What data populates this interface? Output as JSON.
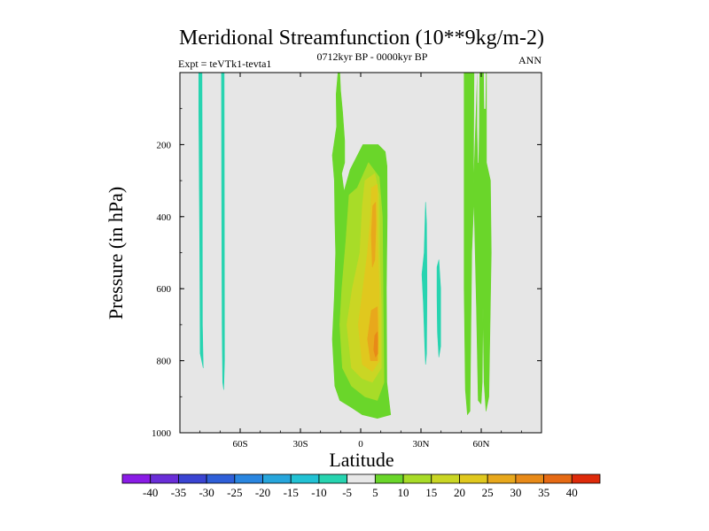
{
  "chart_data": {
    "type": "heatmap",
    "subtype": "filled-contour",
    "title": "Meridional Streamfunction (10**9kg/m-2)",
    "left_subtitle": "Expt = teVTk1-tevta1",
    "center_subtitle": "0712kyr BP - 0000kyr BP",
    "right_subtitle": "ANN",
    "xlabel": "Latitude",
    "ylabel": "Pressure (in hPa)",
    "xlim": [
      -90,
      90
    ],
    "ylim": [
      1000,
      0
    ],
    "x_ticks": [
      {
        "value": -60,
        "label": "60S"
      },
      {
        "value": -30,
        "label": "30S"
      },
      {
        "value": 0,
        "label": "0"
      },
      {
        "value": 30,
        "label": "30N"
      },
      {
        "value": 60,
        "label": "60N"
      }
    ],
    "y_ticks": [
      {
        "value": 200,
        "label": "200"
      },
      {
        "value": 400,
        "label": "400"
      },
      {
        "value": 600,
        "label": "600"
      },
      {
        "value": 800,
        "label": "800"
      },
      {
        "value": 1000,
        "label": "1000"
      }
    ],
    "background_color": "#e6e6e6",
    "colorbar": {
      "levels": [
        -40,
        -35,
        -30,
        -25,
        -20,
        -15,
        -10,
        -5,
        5,
        10,
        15,
        20,
        25,
        30,
        35,
        40
      ],
      "colors": [
        "#8a1ce6",
        "#6a2ed8",
        "#3a44d2",
        "#2f5fd8",
        "#2a86e0",
        "#27a6dc",
        "#22c2d4",
        "#27d4b0",
        "#e8e8e8",
        "#6ad62a",
        "#a8dc28",
        "#cad624",
        "#e0c81e",
        "#e8a81c",
        "#e88a18",
        "#e66a14",
        "#de2a0a"
      ]
    },
    "contour_regions": [
      {
        "name": "band-sh-1",
        "level_min": -10,
        "level_max": -5,
        "color": "#27d4b0",
        "points": [
          [
            -80.6,
            0
          ],
          [
            -79.0,
            0
          ],
          [
            -78.9,
            300
          ],
          [
            -78.8,
            700
          ],
          [
            -78.4,
            820
          ],
          [
            -79.9,
            780
          ],
          [
            -80.1,
            500
          ],
          [
            -80.6,
            100
          ]
        ]
      },
      {
        "name": "band-sh-2",
        "level_min": -10,
        "level_max": -5,
        "color": "#27d4b0",
        "points": [
          [
            -69.3,
            0
          ],
          [
            -68.0,
            0
          ],
          [
            -67.9,
            400
          ],
          [
            -67.8,
            800
          ],
          [
            -68.2,
            880
          ],
          [
            -68.7,
            860
          ],
          [
            -69.0,
            700
          ],
          [
            -69.2,
            300
          ]
        ]
      },
      {
        "name": "eq-cell-outer",
        "level_min": 5,
        "level_max": 10,
        "color": "#6ad62a",
        "points": [
          [
            -11.3,
            0
          ],
          [
            -10.4,
            0
          ],
          [
            -10.0,
            50
          ],
          [
            -9.0,
            110
          ],
          [
            -8.0,
            190
          ],
          [
            -8.0,
            250
          ],
          [
            -9.5,
            280
          ],
          [
            -8.3,
            330
          ],
          [
            -5.3,
            270
          ],
          [
            1.1,
            200
          ],
          [
            8.7,
            200
          ],
          [
            12.2,
            220
          ],
          [
            13.1,
            260
          ],
          [
            13.2,
            400
          ],
          [
            12.8,
            600
          ],
          [
            13.0,
            860
          ],
          [
            14.9,
            950
          ],
          [
            8.3,
            960
          ],
          [
            0.8,
            950
          ],
          [
            -4.6,
            930
          ],
          [
            -10.4,
            910
          ],
          [
            -12.9,
            870
          ],
          [
            -14.1,
            740
          ],
          [
            -13.1,
            620
          ],
          [
            -12.5,
            500
          ],
          [
            -12.9,
            400
          ],
          [
            -13.1,
            300
          ],
          [
            -14.1,
            230
          ],
          [
            -12.0,
            150
          ],
          [
            -12.2,
            60
          ]
        ]
      },
      {
        "name": "eq-cell-10",
        "level_min": 10,
        "level_max": 15,
        "color": "#a8dc28",
        "points": [
          [
            -1.7,
            320
          ],
          [
            3.9,
            250
          ],
          [
            9.2,
            290
          ],
          [
            10.8,
            400
          ],
          [
            11.2,
            650
          ],
          [
            11.6,
            860
          ],
          [
            8.3,
            910
          ],
          [
            2.1,
            900
          ],
          [
            -4.6,
            870
          ],
          [
            -9.1,
            820
          ],
          [
            -10.4,
            700
          ],
          [
            -9.4,
            600
          ],
          [
            -7.4,
            470
          ],
          [
            -5.8,
            340
          ]
        ]
      },
      {
        "name": "eq-cell-15",
        "level_min": 15,
        "level_max": 20,
        "color": "#cad624",
        "points": [
          [
            2.1,
            300
          ],
          [
            7.0,
            280
          ],
          [
            9.2,
            340
          ],
          [
            9.4,
            500
          ],
          [
            10.3,
            650
          ],
          [
            10.3,
            820
          ],
          [
            5.8,
            860
          ],
          [
            0.8,
            850
          ],
          [
            -4.6,
            820
          ],
          [
            -6.9,
            700
          ],
          [
            -4.2,
            600
          ],
          [
            -0.4,
            500
          ],
          [
            0.8,
            370
          ]
        ]
      },
      {
        "name": "eq-cell-20",
        "level_min": 20,
        "level_max": 25,
        "color": "#e0c81e",
        "points": [
          [
            5.3,
            320
          ],
          [
            8.3,
            310
          ],
          [
            8.3,
            450
          ],
          [
            9.2,
            600
          ],
          [
            9.4,
            800
          ],
          [
            5.8,
            830
          ],
          [
            0.8,
            810
          ],
          [
            -1.2,
            700
          ],
          [
            1.1,
            600
          ],
          [
            3.4,
            500
          ],
          [
            4.9,
            400
          ]
        ]
      },
      {
        "name": "eq-cell-25-upper",
        "level_min": 25,
        "level_max": 30,
        "color": "#e8a81c",
        "points": [
          [
            6.0,
            370
          ],
          [
            7.4,
            360
          ],
          [
            7.6,
            420
          ],
          [
            7.0,
            520
          ],
          [
            5.8,
            540
          ],
          [
            5.3,
            450
          ]
        ]
      },
      {
        "name": "eq-cell-25-lower",
        "level_min": 25,
        "level_max": 30,
        "color": "#e8a81c",
        "points": [
          [
            5.3,
            660
          ],
          [
            8.3,
            650
          ],
          [
            8.7,
            740
          ],
          [
            8.3,
            800
          ],
          [
            4.9,
            800
          ],
          [
            3.4,
            740
          ]
        ]
      },
      {
        "name": "eq-cell-30",
        "level_min": 30,
        "level_max": 35,
        "color": "#e88a18",
        "points": [
          [
            7.0,
            730
          ],
          [
            8.3,
            720
          ],
          [
            8.5,
            780
          ],
          [
            7.4,
            790
          ],
          [
            6.5,
            770
          ]
        ]
      },
      {
        "name": "band-nh-1",
        "level_min": -10,
        "level_max": -5,
        "color": "#27d4b0",
        "points": [
          [
            31.6,
            500
          ],
          [
            32.3,
            360
          ],
          [
            32.8,
            420
          ],
          [
            33.0,
            600
          ],
          [
            32.8,
            780
          ],
          [
            32.3,
            810
          ],
          [
            31.9,
            760
          ],
          [
            31.2,
            640
          ],
          [
            30.5,
            560
          ]
        ]
      },
      {
        "name": "band-nh-2",
        "level_min": -10,
        "level_max": -5,
        "color": "#27d4b0",
        "points": [
          [
            38.0,
            540
          ],
          [
            38.9,
            520
          ],
          [
            39.8,
            600
          ],
          [
            39.8,
            760
          ],
          [
            38.9,
            790
          ],
          [
            38.2,
            720
          ],
          [
            38.0,
            620
          ]
        ]
      },
      {
        "name": "band-nh-green",
        "level_min": 5,
        "level_max": 10,
        "color": "#6ad62a",
        "points": [
          [
            51.5,
            0
          ],
          [
            56.4,
            0
          ],
          [
            56.1,
            330
          ],
          [
            58.1,
            0
          ],
          [
            62.6,
            0
          ],
          [
            62.6,
            250
          ],
          [
            64.6,
            300
          ],
          [
            65.0,
            500
          ],
          [
            63.8,
            900
          ],
          [
            62.4,
            940
          ],
          [
            61.4,
            860
          ],
          [
            60.9,
            650
          ],
          [
            60.5,
            860
          ],
          [
            59.9,
            920
          ],
          [
            58.5,
            910
          ],
          [
            57.6,
            650
          ],
          [
            56.4,
            350
          ],
          [
            55.3,
            500
          ],
          [
            54.4,
            940
          ],
          [
            53.1,
            950
          ],
          [
            52.1,
            880
          ],
          [
            51.5,
            600
          ]
        ]
      },
      {
        "name": "band-nh-gap",
        "level_min": -5,
        "level_max": 5,
        "color": "#e6e6e6",
        "points": [
          [
            58.1,
            0
          ],
          [
            59.0,
            0
          ],
          [
            58.8,
            150
          ],
          [
            58.5,
            250
          ],
          [
            58.1,
            150
          ]
        ]
      },
      {
        "name": "band-nh-gap2",
        "level_min": -5,
        "level_max": 5,
        "color": "#e6e6e6",
        "points": [
          [
            61.4,
            0
          ],
          [
            62.2,
            0
          ],
          [
            62.0,
            100
          ],
          [
            61.6,
            100
          ]
        ]
      }
    ]
  }
}
